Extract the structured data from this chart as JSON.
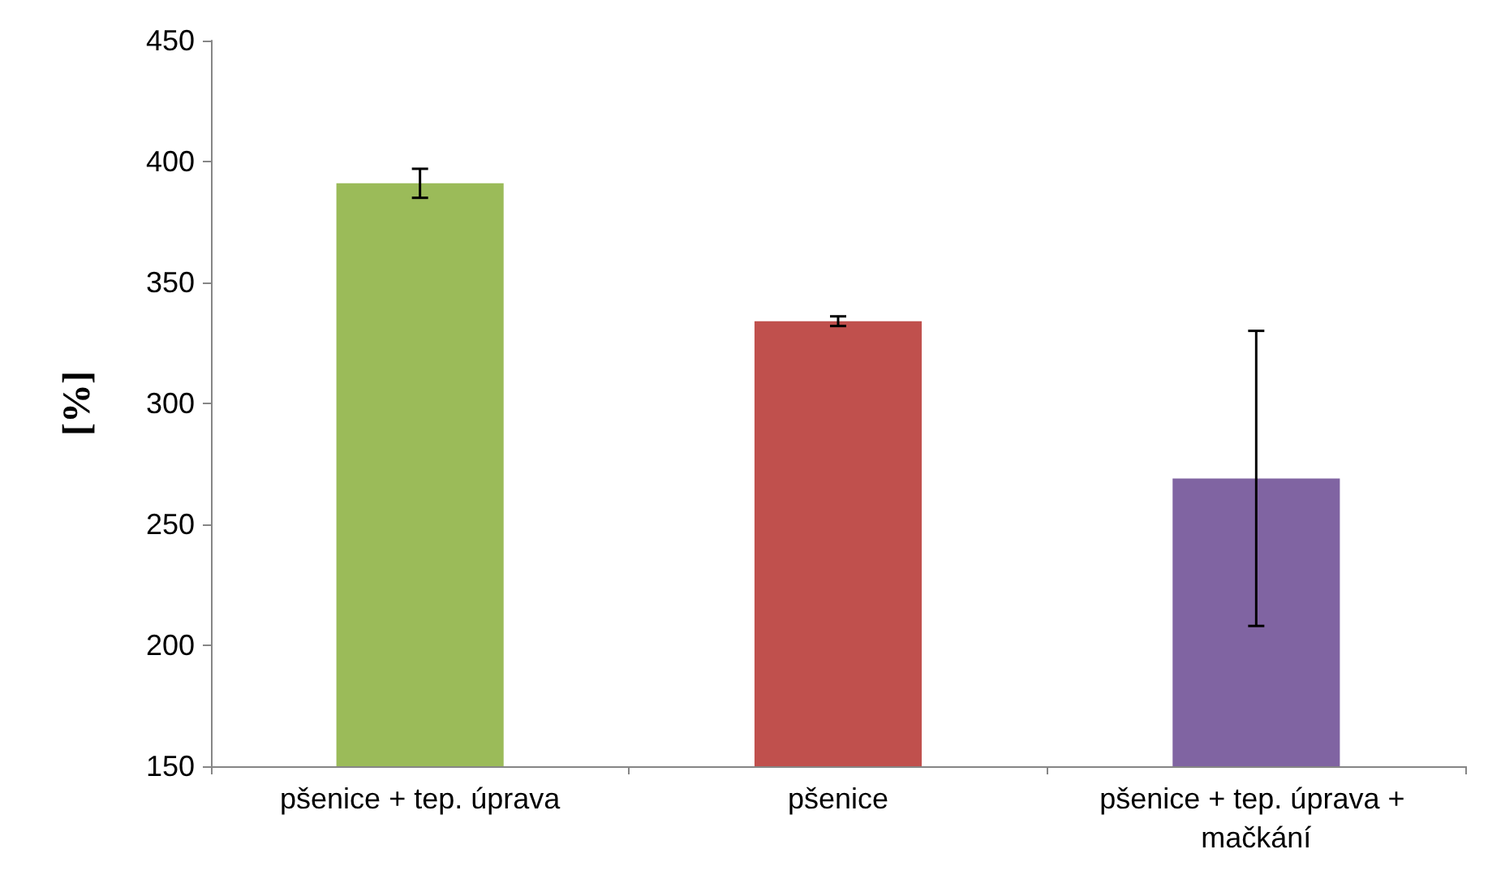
{
  "chart_data": {
    "type": "bar",
    "ylabel": "[%]",
    "categories": [
      "pšenice + tep. úprava",
      "pšenice",
      "pšenice + tep. úprava + mačkání"
    ],
    "values": [
      391,
      334,
      269
    ],
    "colors": [
      "#9bbb59",
      "#c0504d",
      "#8064a2"
    ],
    "errors": [
      6,
      2,
      [
        208,
        330
      ]
    ],
    "ylim": [
      150,
      450
    ],
    "yticks": [
      150,
      200,
      250,
      300,
      350,
      400,
      450
    ],
    "grid": false
  }
}
